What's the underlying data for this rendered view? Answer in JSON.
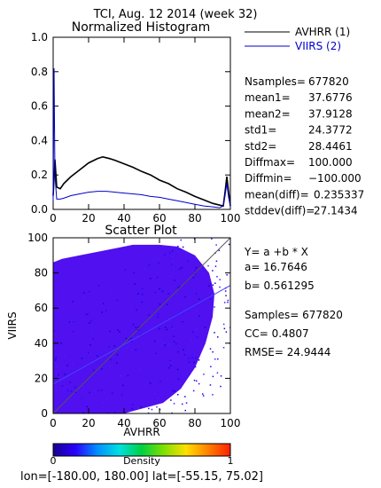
{
  "page_title": "TCI,  Aug. 12 2014 (week 32)",
  "footer_text": "lon=[-180.00, 180.00] lat=[-55.15, 75.02]",
  "colors": {
    "avhrr": "#000000",
    "viirs": "#0000cc",
    "fitline": "#4444ff",
    "identity": "#555555",
    "scatter_fill": "#5010f0"
  },
  "stats": [
    {
      "label": "Nsamples=",
      "value": "677820"
    },
    {
      "label": "mean1=",
      "value": "37.6776"
    },
    {
      "label": "mean2=",
      "value": "37.9128"
    },
    {
      "label": "std1=",
      "value": "24.3772"
    },
    {
      "label": "std2=",
      "value": "28.4461"
    },
    {
      "label": "Diffmax=",
      "value": "100.000"
    },
    {
      "label": "Diffmin=",
      "value": "−100.000"
    },
    {
      "label": "mean(diff)=",
      "value": "0.235337"
    },
    {
      "label": "stddev(diff)=",
      "value": "27.1434"
    }
  ],
  "regression": {
    "equation": "Y= a +b * X",
    "a_line": "a= 16.7646",
    "b_line": "b= 0.561295",
    "samples_line": "Samples= 677820",
    "cc_line": "CC=  0.4807",
    "rmse_line": "RMSE= 24.9444"
  },
  "colorbar": {
    "label": "Density",
    "min_label": "0",
    "max_label": "1",
    "stops": [
      "#1a0090",
      "#2a00ff",
      "#0090ff",
      "#00e0e0",
      "#00d040",
      "#80e000",
      "#ffe000",
      "#ff8000",
      "#ff2000"
    ]
  },
  "chart_data": [
    {
      "type": "line",
      "title": "Normalized Histogram",
      "xlabel": "",
      "ylabel": "",
      "xlim": [
        0,
        100
      ],
      "ylim": [
        0,
        1.0
      ],
      "x_ticks": [
        0,
        20,
        40,
        60,
        80,
        100
      ],
      "y_ticks": [
        "0.0",
        "0.2",
        "0.4",
        "0.6",
        "0.8",
        "1.0"
      ],
      "legend": "right",
      "series": [
        {
          "name": "AVHRR (1)",
          "x": [
            0,
            1,
            2,
            4,
            6,
            8,
            10,
            15,
            20,
            25,
            28,
            30,
            32,
            35,
            40,
            45,
            50,
            55,
            60,
            65,
            70,
            75,
            80,
            85,
            90,
            94,
            96,
            97,
            98,
            99,
            100
          ],
          "y": [
            0.08,
            0.29,
            0.13,
            0.12,
            0.15,
            0.17,
            0.19,
            0.23,
            0.27,
            0.295,
            0.305,
            0.3,
            0.295,
            0.285,
            0.265,
            0.245,
            0.22,
            0.2,
            0.17,
            0.15,
            0.12,
            0.1,
            0.075,
            0.055,
            0.035,
            0.025,
            0.02,
            0.1,
            0.19,
            0.1,
            0.02
          ]
        },
        {
          "name": "VIIRS (2)",
          "x": [
            0,
            0.5,
            1,
            2,
            4,
            6,
            10,
            15,
            20,
            25,
            30,
            35,
            40,
            45,
            50,
            55,
            60,
            65,
            70,
            75,
            80,
            85,
            90,
            94,
            96,
            97,
            98,
            99,
            100
          ],
          "y": [
            0.05,
            0.82,
            0.2,
            0.06,
            0.06,
            0.065,
            0.08,
            0.09,
            0.1,
            0.105,
            0.105,
            0.1,
            0.095,
            0.09,
            0.085,
            0.075,
            0.07,
            0.06,
            0.05,
            0.04,
            0.03,
            0.02,
            0.015,
            0.01,
            0.02,
            0.08,
            0.15,
            0.07,
            0.02
          ]
        }
      ]
    },
    {
      "type": "scatter",
      "title": "Scatter Plot",
      "xlabel": "AVHRR",
      "ylabel": "VIIRS",
      "xlim": [
        0,
        100
      ],
      "ylim": [
        0,
        100
      ],
      "x_ticks": [
        0,
        20,
        40,
        60,
        80,
        100
      ],
      "y_ticks": [
        0,
        20,
        40,
        60,
        80,
        100
      ],
      "density_region": [
        [
          0,
          0
        ],
        [
          12,
          0
        ],
        [
          40,
          0
        ],
        [
          62,
          6
        ],
        [
          72,
          14
        ],
        [
          80,
          26
        ],
        [
          86,
          40
        ],
        [
          90,
          55
        ],
        [
          91,
          68
        ],
        [
          88,
          80
        ],
        [
          80,
          90
        ],
        [
          70,
          95
        ],
        [
          60,
          96
        ],
        [
          45,
          96
        ],
        [
          30,
          93
        ],
        [
          15,
          90
        ],
        [
          5,
          88
        ],
        [
          0,
          86
        ]
      ],
      "fit": {
        "a": 16.7646,
        "b": 0.561295
      },
      "identity_line": [
        [
          0,
          0
        ],
        [
          100,
          100
        ]
      ]
    }
  ]
}
